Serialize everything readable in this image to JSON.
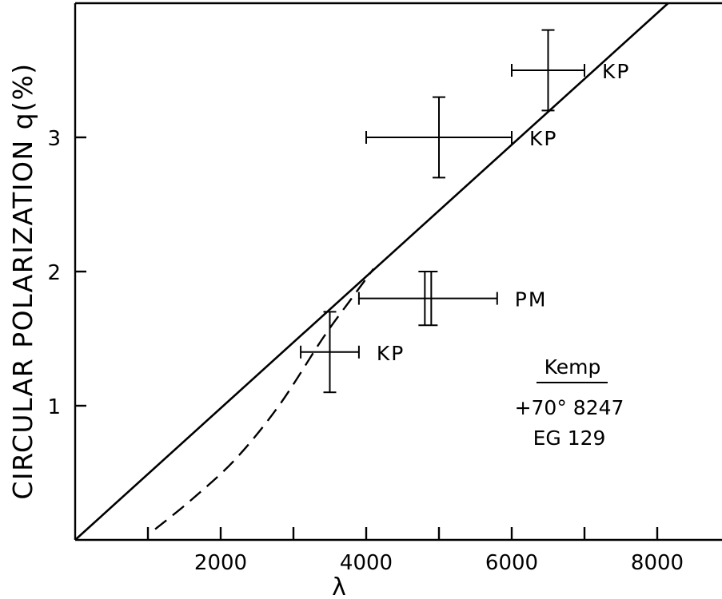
{
  "chart_data": {
    "type": "scatter",
    "xlabel": "λ",
    "ylabel": "CIRCULAR POLARIZATION q(%)",
    "xlim": [
      0,
      10000
    ],
    "ylim": [
      0,
      4
    ],
    "x_tick_labels": [
      "2000",
      "4000",
      "6000",
      "8000"
    ],
    "x_tick_values": [
      2000,
      4000,
      6000,
      8000
    ],
    "x_minor_ticks": [
      1000,
      3000,
      5000,
      7000,
      9000
    ],
    "y_tick_labels": [
      "1",
      "2",
      "3"
    ],
    "y_tick_values": [
      1,
      2,
      3
    ],
    "grid": false,
    "series": [
      {
        "style": "error-bar-points",
        "points": [
          {
            "x": 3500,
            "y": 1.4,
            "xerr": [
              3100,
              3900
            ],
            "yerr": [
              1.1,
              1.7
            ],
            "label": "KP"
          },
          {
            "x": 4850,
            "y": 1.8,
            "xerr": [
              3900,
              5800
            ],
            "yerr": [
              1.6,
              2.0
            ],
            "label": "PM",
            "double_vertical": true
          },
          {
            "x": 5000,
            "y": 3.0,
            "xerr": [
              4000,
              6000
            ],
            "yerr": [
              2.7,
              3.3
            ],
            "label": "KP"
          },
          {
            "x": 6500,
            "y": 3.5,
            "xerr": [
              6000,
              7000
            ],
            "yerr": [
              3.2,
              3.8
            ],
            "label": "KP"
          }
        ]
      },
      {
        "style": "solid-line",
        "points": [
          [
            0,
            0
          ],
          [
            8150,
            4.0
          ]
        ]
      },
      {
        "style": "dashed-line",
        "points": [
          [
            1100,
            0.08
          ],
          [
            1600,
            0.3
          ],
          [
            2200,
            0.6
          ],
          [
            2800,
            1.0
          ],
          [
            3400,
            1.5
          ],
          [
            3800,
            1.8
          ],
          [
            4100,
            2.02
          ]
        ]
      }
    ],
    "annotation": {
      "title": "Kemp",
      "lines": [
        "+70° 8247",
        "EG 129"
      ]
    }
  }
}
